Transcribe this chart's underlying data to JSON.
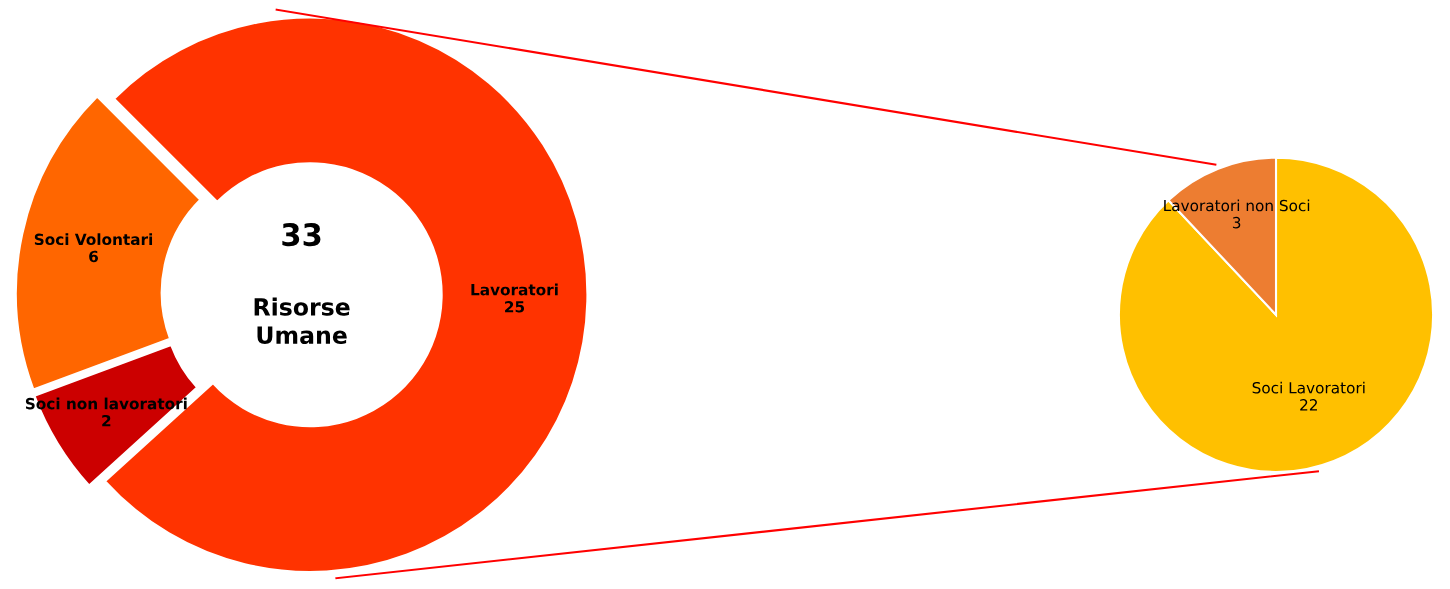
{
  "chart_data": [
    {
      "type": "donut",
      "categories": [
        "Lavoratori",
        "Soci non lavoratori",
        "Soci Volontari"
      ],
      "values": [
        25,
        2,
        6
      ],
      "colors": [
        "#ff3300",
        "#cc0000",
        "#ff6600"
      ],
      "data_labels": true,
      "annotations": [
        "33",
        "Risorse Umane"
      ]
    },
    {
      "type": "pie",
      "categories": [
        "Soci Lavoratori",
        "Lavoratori non Soci"
      ],
      "values": [
        22,
        3
      ],
      "colors": [
        "#ffc000",
        "#ed7d31"
      ],
      "data_labels": true
    }
  ]
}
